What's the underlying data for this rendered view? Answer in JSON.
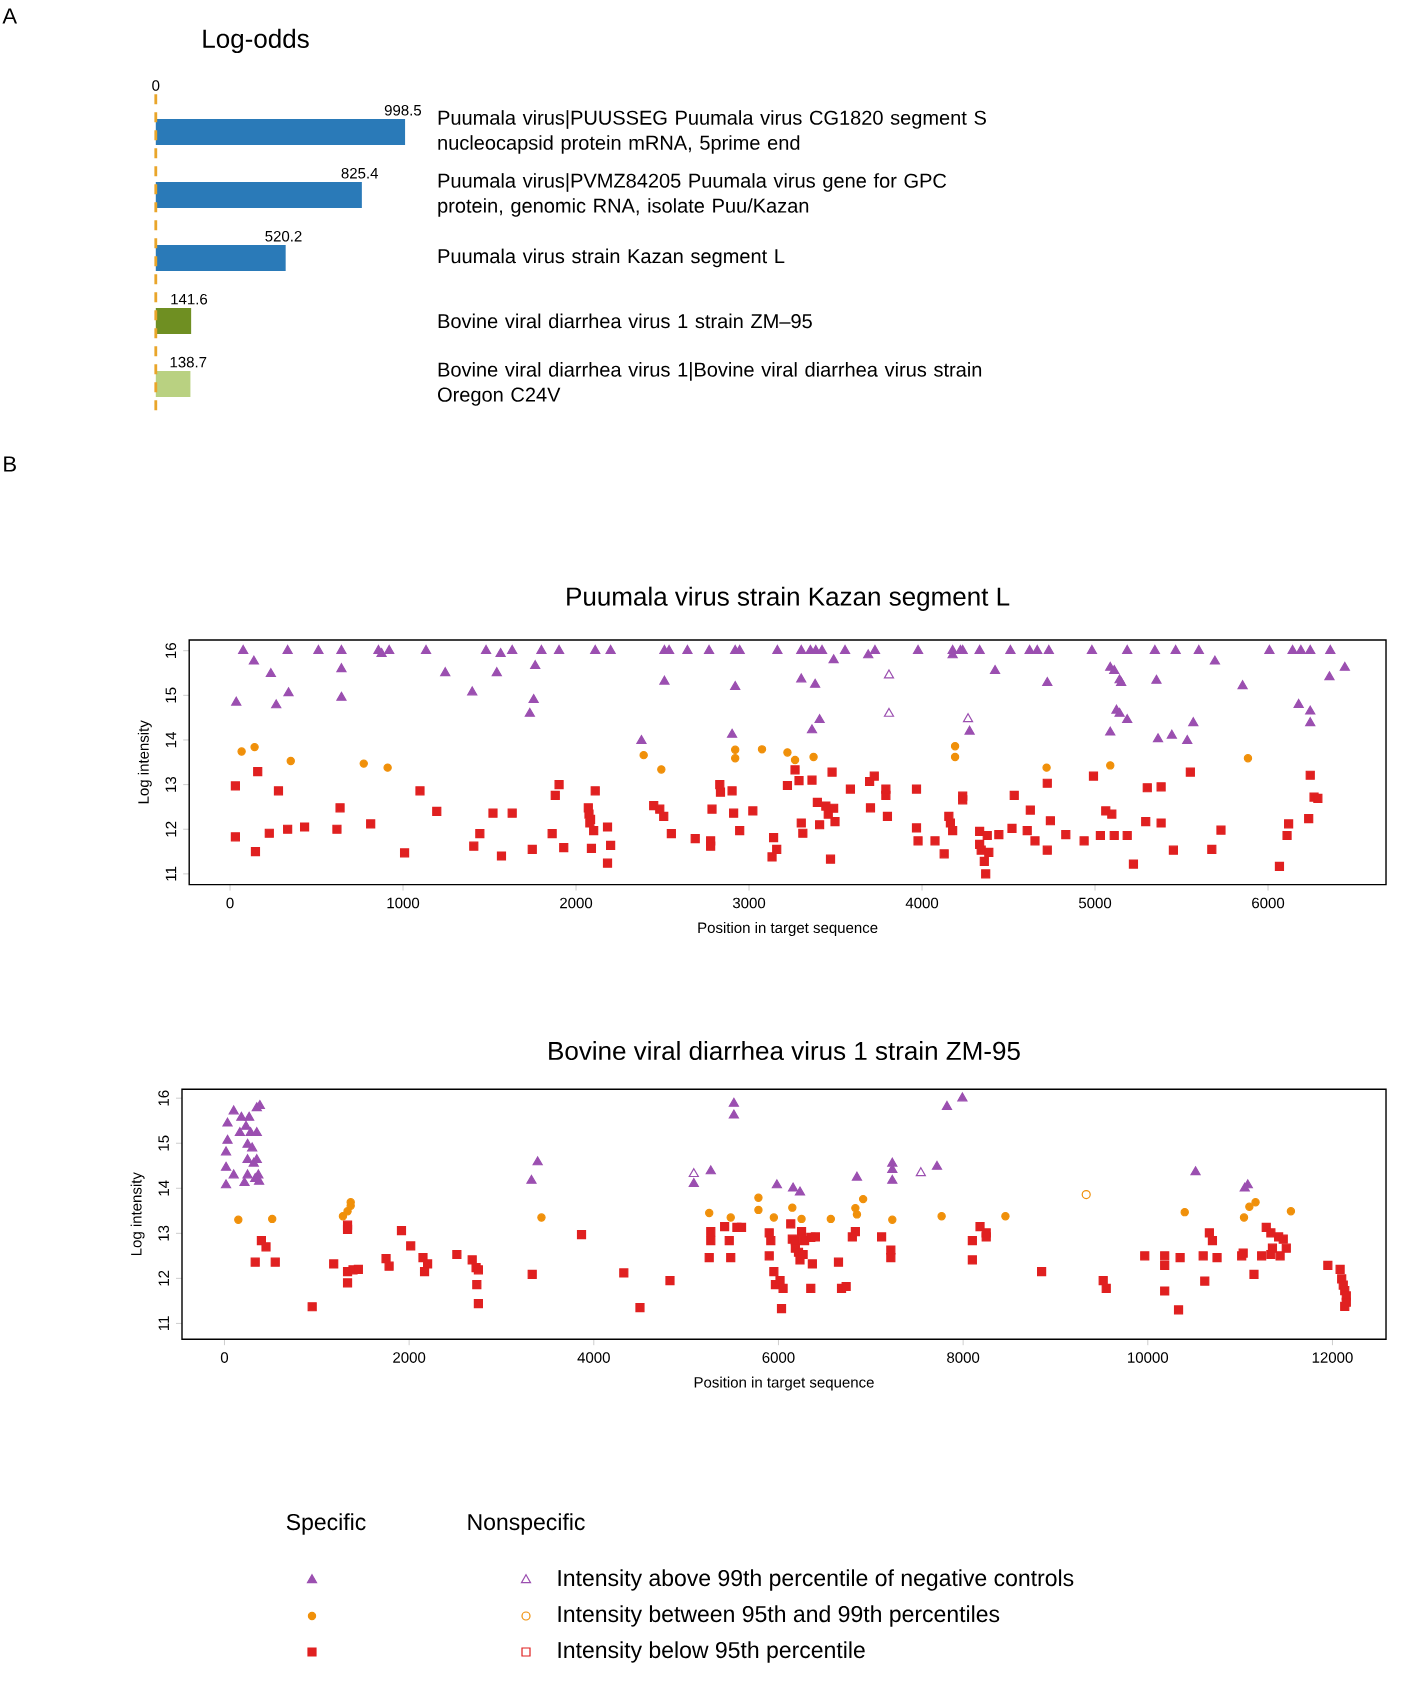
{
  "chart_data": [
    {
      "type": "bar",
      "orientation": "horizontal",
      "title": "Log-odds",
      "categories": [
        "Puumala virus|PUUSSEG Puumala virus CG1820 segment S nucleocapsid protein mRNA, 5prime end",
        "Puumala virus|PVMZ84205 Puumala virus gene for GPC protein, genomic RNA, isolate Puu/Kazan",
        "Puumala virus strain Kazan segment L",
        "Bovine viral diarrhea virus 1 strain ZM–95",
        "Bovine viral diarrhea virus 1|Bovine viral diarrhea virus strain Oregon C24V"
      ],
      "values": [
        998.5,
        825.4,
        520.2,
        141.6,
        138.7
      ],
      "data_labels": true,
      "colors": [
        "#2a7ab8",
        "#2a7ab8",
        "#2a7ab8",
        "#6f8f22",
        "#b9d181"
      ],
      "ref_lines": [
        {
          "axis": "x",
          "value": 0,
          "color": "#e9a52a",
          "line_style": "dashed"
        }
      ],
      "annotations": [
        "A",
        {
          "text": "0",
          "x": 0
        }
      ]
    },
    {
      "type": "scatter",
      "title": "Puumala virus strain Kazan segment L",
      "xlabel": "Position in target sequence",
      "ylabel": "Log intensity",
      "xlim": [
        -236,
        6682
      ],
      "ylim": [
        10.76,
        16.24
      ],
      "xticks": [
        0,
        1000,
        2000,
        3000,
        4000,
        5000,
        6000
      ],
      "yticks": [
        11,
        12,
        13,
        14,
        15,
        16
      ],
      "annotations": [
        "B"
      ],
      "series": [
        {
          "color": "#9b4fb0",
          "marker": "triangle",
          "x": [
            76,
            333,
            511,
            644,
            858,
            920,
            1133,
            1480,
            1631,
            1800,
            1902,
            2111,
            2200,
            2511,
            2538,
            2644,
            2769,
            2920,
            2946,
            3164,
            3302,
            3355,
            3386,
            3422,
            3555,
            3728,
            3977,
            4177,
            4235,
            4333,
            4511,
            4622,
            4666,
            4733,
            4982,
            5186,
            5346,
            5466,
            5600,
            6008,
            6142,
            6190,
            6244,
            6360,
            36,
            138,
            236,
            267,
            338,
            644,
            644,
            876,
            1244,
            1400,
            1542,
            1564,
            1764,
            1755,
            1733,
            2378,
            2511,
            2920,
            2902,
            3302,
            3382,
            3408,
            3364,
            3489,
            3689,
            4177,
            4222,
            4422,
            4724,
            5088,
            5111,
            5142,
            5151,
            5088,
            5124,
            5142,
            5186,
            5355,
            5364,
            5444,
            5533,
            5568,
            5693,
            5853,
            6177,
            6244,
            6244,
            6355,
            6444,
            4275
          ],
          "values": [
            16,
            16,
            16,
            16,
            16,
            16,
            16,
            16,
            16,
            16,
            16,
            16,
            16,
            16,
            16,
            16,
            16,
            16,
            16,
            16,
            16,
            16,
            16,
            16,
            16,
            16,
            16,
            16,
            16,
            16,
            16,
            16,
            16,
            16,
            16,
            16,
            16,
            16,
            16,
            16,
            16,
            16,
            16,
            16,
            14.84,
            15.76,
            15.48,
            14.78,
            15.05,
            15.59,
            14.95,
            15.93,
            15.5,
            15.07,
            15.5,
            15.93,
            15.66,
            14.9,
            14.59,
            13.98,
            15.31,
            15.19,
            14.12,
            15.36,
            15.24,
            14.45,
            14.22,
            15.79,
            15.9,
            15.9,
            16.0,
            15.55,
            15.28,
            15.62,
            15.55,
            15.34,
            15.28,
            14.17,
            14.66,
            14.59,
            14.45,
            15.33,
            14.02,
            14.1,
            13.98,
            14.38,
            15.76,
            15.21,
            14.79,
            14.64,
            14.38,
            15.41,
            15.62,
            14.19
          ]
        },
        {
          "color": "#f0900a",
          "marker": "circle",
          "x": [
            67,
            142,
            351,
            773,
            911,
            2391,
            2493,
            2920,
            2920,
            3075,
            3222,
            3266,
            3373,
            4191,
            4191,
            4720,
            5088,
            5884
          ],
          "values": [
            13.74,
            13.84,
            13.53,
            13.47,
            13.38,
            13.66,
            13.34,
            13.78,
            13.59,
            13.79,
            13.72,
            13.55,
            13.62,
            13.86,
            13.62,
            13.38,
            13.43,
            13.59
          ]
        },
        {
          "color": "#e02020",
          "marker": "square",
          "x": [
            31,
            160,
            280,
            636,
            813,
            31,
            147,
            227,
            333,
            431,
            618,
            1009,
            1098,
            1195,
            1409,
            1444,
            1520,
            1569,
            1631,
            1747,
            1862,
            1880,
            1902,
            1929,
            2111,
            2071,
            2075,
            2084,
            2080,
            2102,
            2089,
            2182,
            2200,
            2182,
            2449,
            2484,
            2507,
            2551,
            2689,
            2778,
            2778,
            2831,
            2835,
            2786,
            2902,
            2911,
            2946,
            3022,
            3133,
            3142,
            3160,
            3222,
            3266,
            3289,
            3302,
            3311,
            3364,
            3395,
            3408,
            3444,
            3458,
            3480,
            3489,
            3497,
            3471,
            3586,
            3697,
            3724,
            3702,
            3791,
            3791,
            3800,
            3968,
            3968,
            3977,
            4075,
            4128,
            4155,
            4164,
            4177,
            4235,
            4235,
            4333,
            4333,
            4342,
            4360,
            4377,
            4386,
            4368,
            4444,
            4533,
            4520,
            4608,
            4626,
            4653,
            4724,
            4724,
            4742,
            4831,
            4937,
            4991,
            5031,
            5062,
            5097,
            5111,
            5186,
            5222,
            5293,
            5302,
            5382,
            5382,
            5453,
            5551,
            5675,
            5728,
            6066,
            6110,
            6119,
            6244,
            6266,
            6288,
            6235
          ],
          "values": [
            12.97,
            13.29,
            12.86,
            12.48,
            12.12,
            11.83,
            11.5,
            11.91,
            12.0,
            12.05,
            12.0,
            11.47,
            12.86,
            12.4,
            11.62,
            11.9,
            12.36,
            11.4,
            12.36,
            11.55,
            11.9,
            12.76,
            13.0,
            11.59,
            12.86,
            12.48,
            12.34,
            12.22,
            12.14,
            11.97,
            11.57,
            12.05,
            11.64,
            11.24,
            12.53,
            12.45,
            12.29,
            11.9,
            11.79,
            11.74,
            11.62,
            13.0,
            12.83,
            12.45,
            12.86,
            12.36,
            11.97,
            12.41,
            11.38,
            11.81,
            11.55,
            12.98,
            13.33,
            13.09,
            12.14,
            11.91,
            13.1,
            12.6,
            12.1,
            12.52,
            12.34,
            13.28,
            12.47,
            12.17,
            11.33,
            12.9,
            13.07,
            13.19,
            12.48,
            12.76,
            12.9,
            12.29,
            12.9,
            12.03,
            11.74,
            11.74,
            11.45,
            12.29,
            12.14,
            11.97,
            12.74,
            12.66,
            11.95,
            11.66,
            11.53,
            11.28,
            11.86,
            11.48,
            11.0,
            11.88,
            12.76,
            12.02,
            11.97,
            12.43,
            11.74,
            11.53,
            13.03,
            12.19,
            11.88,
            11.74,
            13.19,
            11.86,
            12.41,
            12.34,
            11.86,
            11.86,
            11.22,
            12.17,
            12.93,
            12.95,
            12.14,
            11.53,
            13.28,
            11.55,
            11.98,
            11.17,
            11.86,
            12.12,
            13.21,
            12.72,
            12.69,
            12.24
          ]
        },
        {
          "color": "#9b4fb0",
          "marker": "triangle-open",
          "x": [
            3809,
            3809,
            4266
          ],
          "values": [
            15.45,
            14.59,
            14.47
          ]
        }
      ]
    },
    {
      "type": "scatter",
      "title": "Bovine viral diarrhea virus 1 strain ZM-95",
      "xlabel": "Position in target sequence",
      "ylabel": "Log intensity",
      "xlim": [
        -460,
        12580
      ],
      "ylim": [
        10.65,
        16.2
      ],
      "xticks": [
        0,
        2000,
        4000,
        6000,
        8000,
        10000,
        12000
      ],
      "yticks": [
        11,
        12,
        13,
        14,
        15,
        16
      ],
      "legend": "bottom",
      "annotations": [
        "Specific",
        "Nonspecific"
      ],
      "series": [
        {
          "name": "Intensity above 99th percentile of negative controls",
          "color": "#9b4fb0",
          "marker": "triangle",
          "x": [
            17,
            17,
            17,
            33,
            33,
            100,
            167,
            183,
            233,
            250,
            250,
            250,
            267,
            283,
            300,
            317,
            333,
            350,
            383,
            350,
            350,
            367,
            375,
            217,
            100,
            3325,
            3392,
            5517,
            5517,
            5083,
            5267,
            5983,
            6158,
            6233,
            6850,
            7233,
            7233,
            7233,
            7717,
            7825,
            7992,
            10517,
            11050,
            11083
          ],
          "values": [
            14.07,
            14.46,
            14.8,
            15.06,
            15.44,
            15.71,
            15.23,
            15.57,
            15.37,
            14.97,
            14.63,
            14.29,
            15.57,
            15.23,
            14.89,
            14.55,
            14.21,
            15.78,
            15.83,
            15.23,
            14.63,
            14.29,
            14.15,
            14.12,
            14.29,
            14.17,
            14.58,
            15.88,
            15.62,
            14.1,
            14.38,
            14.07,
            14.0,
            13.91,
            14.24,
            14.55,
            14.41,
            14.17,
            14.48,
            15.81,
            16.0,
            14.36,
            14.0,
            14.07
          ]
        },
        {
          "name": "Intensity between 95th and 99th percentiles",
          "color": "#f0900a",
          "marker": "circle",
          "x": [
            150,
            517,
            1283,
            1333,
            1367,
            1367,
            3433,
            5250,
            5483,
            5783,
            5783,
            5950,
            6150,
            6250,
            6567,
            6833,
            6850,
            6917,
            7233,
            7767,
            8458,
            10400,
            11042,
            11100,
            11167,
            11550
          ],
          "values": [
            13.3,
            13.32,
            13.38,
            13.49,
            13.61,
            13.69,
            13.35,
            13.45,
            13.35,
            13.79,
            13.52,
            13.35,
            13.57,
            13.32,
            13.32,
            13.56,
            13.42,
            13.76,
            13.3,
            13.38,
            13.38,
            13.47,
            13.35,
            13.59,
            13.69,
            13.49
          ]
        },
        {
          "name": "Intensity below 95th percentile",
          "color": "#e02020",
          "marker": "square",
          "x": [
            400,
            450,
            333,
            550,
            950,
            1183,
            1333,
            1333,
            1333,
            1333,
            1392,
            1450,
            1750,
            1783,
            1917,
            2017,
            2150,
            2167,
            2200,
            2517,
            2683,
            2725,
            2750,
            2733,
            2750,
            3333,
            3867,
            4325,
            4500,
            4825,
            5267,
            5250,
            5267,
            5417,
            5467,
            5483,
            5550,
            5600,
            5900,
            5917,
            5950,
            5967,
            5900,
            6017,
            6033,
            6050,
            6133,
            6150,
            6183,
            6183,
            6217,
            6233,
            6250,
            6267,
            6283,
            6350,
            6367,
            6400,
            6350,
            6650,
            6683,
            6733,
            6800,
            6833,
            7117,
            7217,
            7217,
            8100,
            8183,
            8250,
            8250,
            8100,
            8850,
            9517,
            9550,
            9967,
            10183,
            10183,
            10183,
            10350,
            10333,
            10600,
            10667,
            10700,
            10750,
            10617,
            11017,
            11033,
            11150,
            11233,
            11283,
            11333,
            11350,
            11417,
            11467,
            11500,
            11433,
            11333,
            11950,
            12083,
            12100,
            12117,
            12133,
            12150,
            12150,
            12133
          ],
          "values": [
            12.84,
            12.7,
            12.36,
            12.36,
            11.37,
            12.32,
            13.09,
            13.18,
            12.15,
            11.9,
            12.19,
            12.2,
            12.44,
            12.27,
            13.06,
            12.72,
            12.46,
            12.15,
            12.32,
            12.53,
            12.41,
            12.24,
            12.19,
            11.86,
            11.44,
            12.09,
            12.97,
            12.12,
            11.35,
            11.95,
            12.84,
            12.46,
            13.04,
            13.15,
            12.84,
            12.46,
            13.13,
            13.13,
            13.01,
            12.84,
            12.15,
            11.86,
            12.5,
            11.95,
            11.33,
            11.78,
            13.21,
            12.87,
            12.84,
            12.67,
            12.58,
            12.41,
            13.04,
            12.53,
            12.84,
            12.91,
            12.32,
            12.92,
            11.78,
            12.36,
            11.78,
            11.82,
            12.92,
            13.04,
            12.92,
            12.63,
            12.46,
            12.84,
            13.15,
            13.01,
            12.92,
            12.41,
            12.15,
            11.95,
            11.78,
            12.5,
            12.5,
            12.29,
            11.72,
            12.46,
            11.3,
            12.5,
            13.01,
            12.84,
            12.46,
            11.94,
            12.5,
            12.56,
            12.09,
            12.5,
            13.13,
            13.01,
            12.67,
            12.92,
            12.87,
            12.67,
            12.5,
            12.53,
            12.29,
            12.2,
            11.99,
            11.85,
            11.73,
            11.61,
            11.47,
            11.38
          ]
        },
        {
          "color": "#9b4fb0",
          "marker": "triangle-open",
          "x": [
            5083,
            7542
          ],
          "values": [
            14.32,
            14.34
          ]
        },
        {
          "color": "#f0900a",
          "marker": "circle-open",
          "x": [
            9333
          ],
          "values": [
            13.86
          ]
        },
        {
          "color": "#e02020",
          "marker": "square-open"
        }
      ]
    }
  ]
}
